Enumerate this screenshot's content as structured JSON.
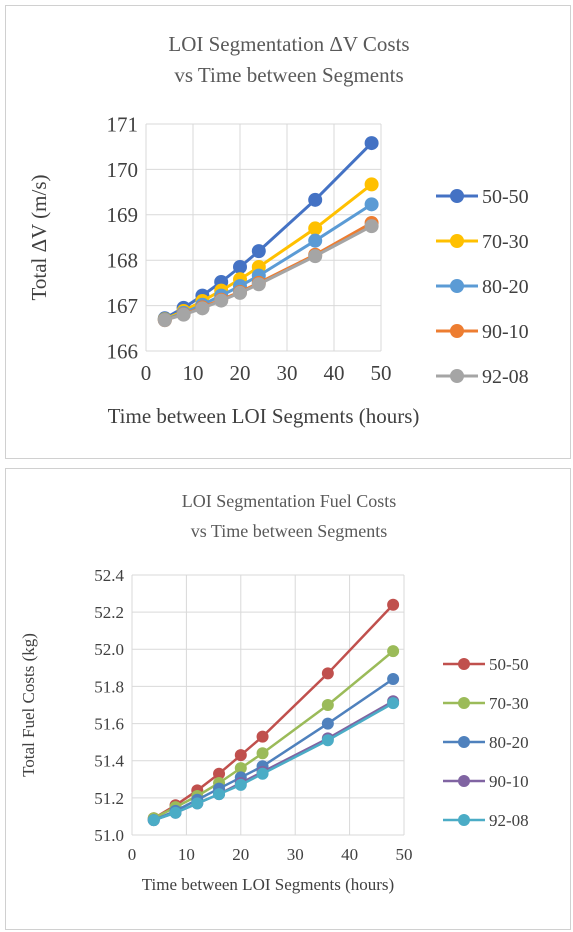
{
  "charts": [
    {
      "title_line1": "LOI Segmentation ΔV Costs",
      "title_line2": "vs Time between Segments",
      "chart_data": {
        "type": "line",
        "title": "LOI Segmentation ΔV Costs vs Time between Segments",
        "xlabel": "Time between LOI Segments (hours)",
        "ylabel": "Total ΔV (m/s)",
        "xlim": [
          0,
          50
        ],
        "ylim": [
          166,
          171
        ],
        "xticks": [
          0,
          10,
          20,
          30,
          40,
          50
        ],
        "yticks": [
          166,
          167,
          168,
          169,
          170,
          171
        ],
        "grid": "vertical and horizontal",
        "legend": "right",
        "x": [
          4,
          8,
          12,
          16,
          20,
          24,
          36,
          48
        ],
        "series": [
          {
            "name": "50-50",
            "color": "#4472C4",
            "values": [
              166.72,
              166.95,
              167.22,
              167.52,
              167.85,
              168.2,
              169.33,
              170.58
            ]
          },
          {
            "name": "70-30",
            "color": "#FFC000",
            "values": [
              166.7,
              166.88,
              167.1,
              167.33,
              167.58,
              167.85,
              168.7,
              169.67
            ]
          },
          {
            "name": "80-20",
            "color": "#5B9BD5",
            "values": [
              166.69,
              166.84,
              167.02,
              167.22,
              167.43,
              167.66,
              168.43,
              169.23
            ]
          },
          {
            "name": "90-10",
            "color": "#ED7D31",
            "values": [
              166.68,
              166.81,
              166.96,
              167.13,
              167.3,
              167.5,
              168.12,
              168.82
            ]
          },
          {
            "name": "92-08",
            "color": "#A5A5A5",
            "values": [
              166.68,
              166.8,
              166.94,
              167.11,
              167.28,
              167.47,
              168.09,
              168.75
            ]
          }
        ]
      }
    },
    {
      "title_line1": "LOI Segmentation  Fuel Costs",
      "title_line2": "vs Time between Segments",
      "chart_data": {
        "type": "line",
        "title": "LOI Segmentation  Fuel Costs vs Time between Segments",
        "xlabel": "Time between LOI Segments (hours)",
        "ylabel": "Total Fuel Costs (kg)",
        "xlim": [
          0,
          50
        ],
        "ylim": [
          51.0,
          52.4
        ],
        "xticks": [
          0,
          10,
          20,
          30,
          40,
          50
        ],
        "yticks": [
          51.0,
          51.2,
          51.4,
          51.6,
          51.8,
          52.0,
          52.2,
          52.4
        ],
        "grid": "vertical and horizontal",
        "legend": "right",
        "x": [
          4,
          8,
          12,
          16,
          20,
          24,
          36,
          48
        ],
        "series": [
          {
            "name": "50-50",
            "color": "#C0504D",
            "values": [
              51.09,
              51.16,
              51.24,
              51.33,
              51.43,
              51.53,
              51.87,
              52.24
            ]
          },
          {
            "name": "70-30",
            "color": "#9BBB59",
            "values": [
              51.09,
              51.15,
              51.21,
              51.28,
              51.36,
              51.44,
              51.7,
              51.99
            ]
          },
          {
            "name": "80-20",
            "color": "#4F81BD",
            "values": [
              51.08,
              51.13,
              51.19,
              51.25,
              51.31,
              51.37,
              51.6,
              51.84
            ]
          },
          {
            "name": "90-10",
            "color": "#8064A2",
            "values": [
              51.08,
              51.12,
              51.17,
              51.22,
              51.28,
              51.34,
              51.52,
              51.72
            ]
          },
          {
            "name": "92-08",
            "color": "#4BACC6",
            "values": [
              51.08,
              51.12,
              51.17,
              51.22,
              51.27,
              51.33,
              51.51,
              51.71
            ]
          }
        ]
      }
    }
  ]
}
